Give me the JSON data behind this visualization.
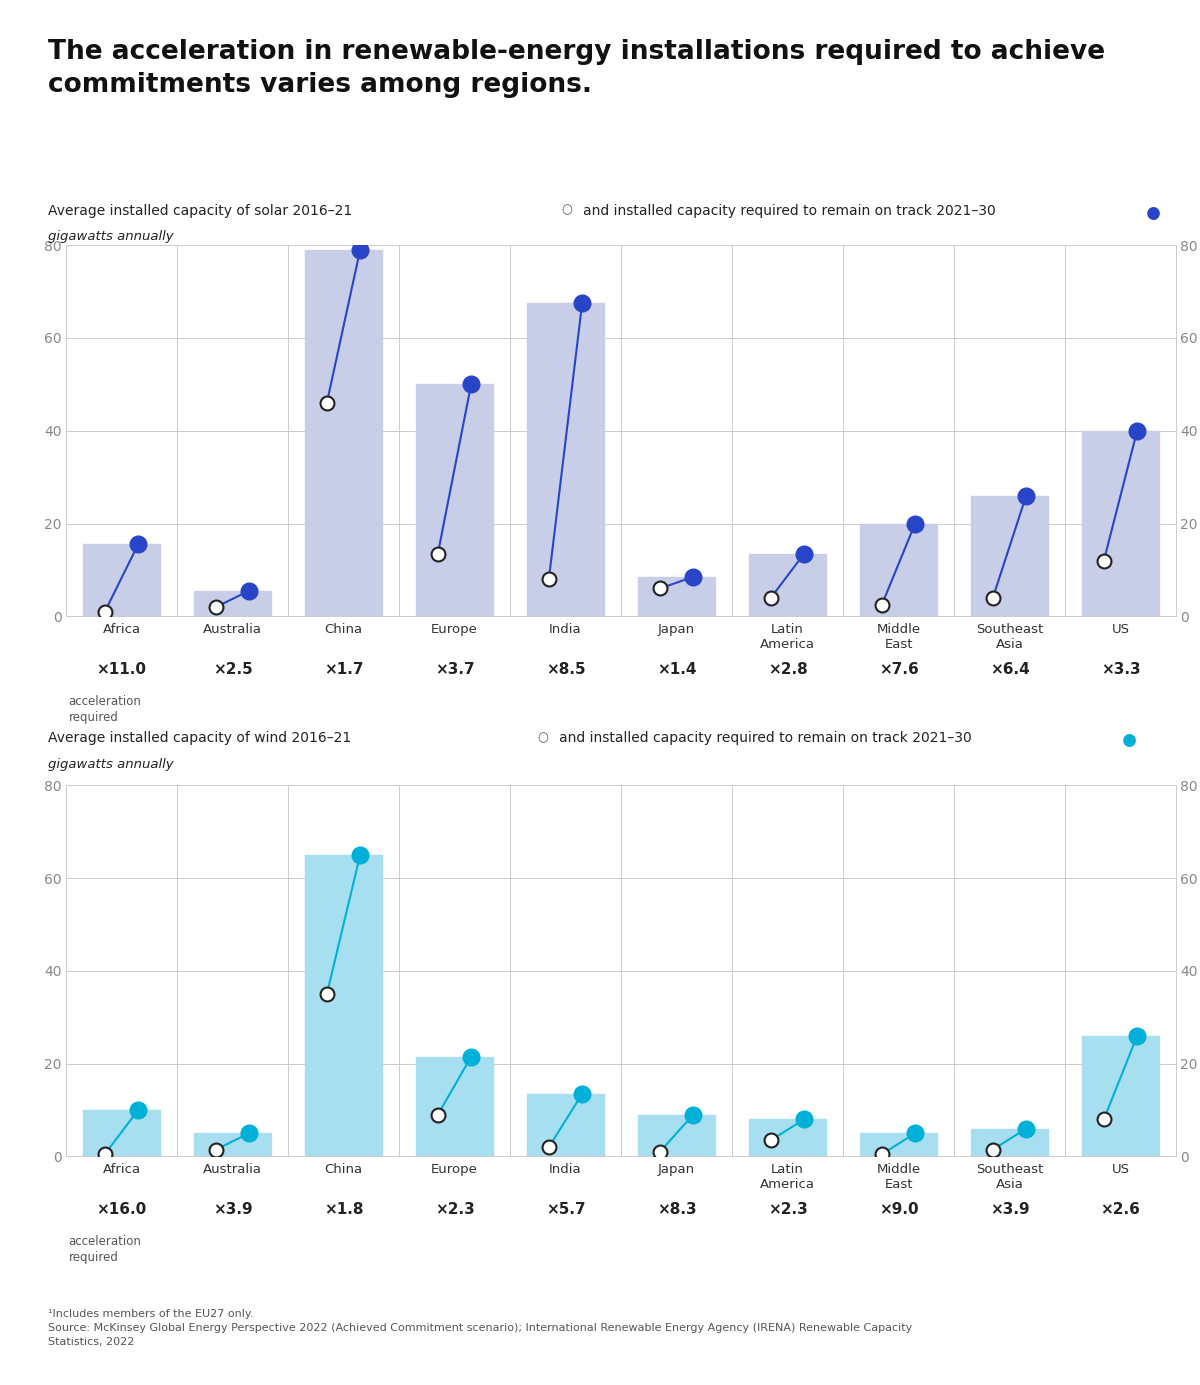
{
  "title_line1": "The acceleration in renewable-energy installations required to achieve",
  "title_line2": "commitments varies among regions.",
  "solar_subtitle_left": "Average installed capacity of solar 2016–21 ",
  "solar_subtitle_right": " and installed capacity required to remain on track 2021–30 ",
  "wind_subtitle_left": "Average installed capacity of wind 2016–21 ",
  "wind_subtitle_right": " and installed capacity required to remain on track 2021–30 ",
  "unit_label": "gigawatts annually",
  "footnote": "¹Includes members of the EU27 only.\nSource: McKinsey Global Energy Perspective 2022 (Achieved Commitment scenario); International Renewable Energy Agency (IRENA) Renewable Capacity\nStatistics, 2022",
  "regions": [
    "Africa",
    "Australia",
    "China",
    "Europe",
    "India",
    "Japan",
    "Latin\nAmerica",
    "Middle\nEast",
    "Southeast\nAsia",
    "US"
  ],
  "solar_current": [
    1.0,
    2.0,
    46.0,
    13.5,
    8.0,
    6.0,
    4.0,
    2.5,
    4.0,
    12.0
  ],
  "solar_required": [
    15.5,
    5.5,
    79.0,
    50.0,
    67.5,
    8.5,
    13.5,
    20.0,
    26.0,
    40.0
  ],
  "solar_multipliers": [
    "×11.0",
    "×2.5",
    "×1.7",
    "×3.7",
    "×8.5",
    "×1.4",
    "×2.8",
    "×7.6",
    "×6.4",
    "×3.3"
  ],
  "wind_current": [
    0.5,
    1.5,
    35.0,
    9.0,
    2.0,
    1.0,
    3.5,
    0.5,
    1.5,
    8.0
  ],
  "wind_required": [
    10.0,
    5.0,
    65.0,
    21.5,
    13.5,
    9.0,
    8.0,
    5.0,
    6.0,
    26.0
  ],
  "wind_multipliers": [
    "×16.0",
    "×3.9",
    "×1.8",
    "×2.3",
    "×5.7",
    "×8.3",
    "×2.3",
    "×9.0",
    "×3.9",
    "×2.6"
  ],
  "solar_dot_color": "#2845c8",
  "solar_bar_color": "#c8cde8",
  "solar_line_color": "#2845c8",
  "wind_dot_color": "#00b0d8",
  "wind_bar_color": "#a8dff0",
  "wind_line_color": "#00b0d8",
  "open_dot_facecolor": "#ffffff",
  "open_dot_edgecolor": "#222222",
  "ylim": [
    0,
    80
  ],
  "yticks": [
    0,
    20,
    40,
    60,
    80
  ],
  "background_color": "#ffffff",
  "grid_color": "#cccccc",
  "divider_color": "#cccccc"
}
